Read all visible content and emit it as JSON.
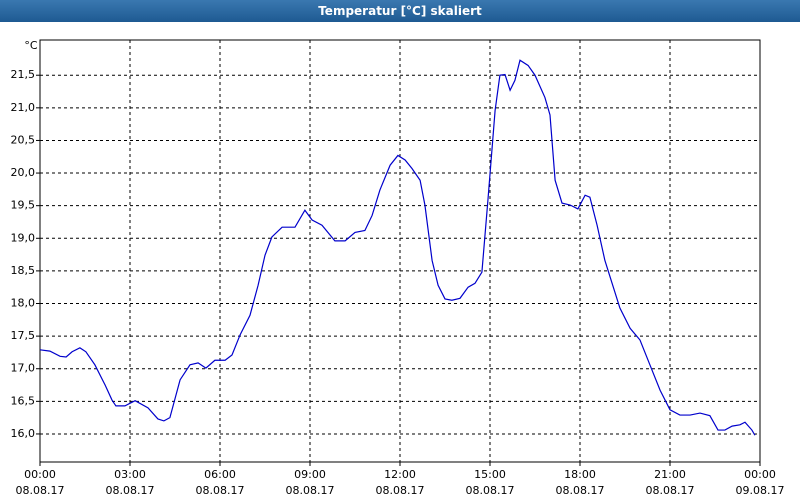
{
  "chart_data": {
    "type": "line",
    "title": "Temperatur [°C] skaliert",
    "y_unit": "°C",
    "x": [
      0,
      0.33,
      0.67,
      0.87,
      1.07,
      1.33,
      1.53,
      1.83,
      2.17,
      2.4,
      2.53,
      2.83,
      3.17,
      3.6,
      3.93,
      4.13,
      4.33,
      4.67,
      5,
      5.27,
      5.53,
      5.83,
      6.17,
      6.4,
      6.67,
      7,
      7.27,
      7.5,
      7.73,
      8.07,
      8.5,
      8.83,
      9.07,
      9.4,
      9.83,
      10.17,
      10.5,
      10.83,
      11.07,
      11.33,
      11.67,
      11.93,
      12.17,
      12.4,
      12.67,
      12.83,
      13.07,
      13.27,
      13.5,
      13.73,
      14,
      14.27,
      14.5,
      14.73,
      14.93,
      15.17,
      15.33,
      15.5,
      15.67,
      15.83,
      16,
      16.27,
      16.5,
      16.83,
      17,
      17.17,
      17.4,
      17.67,
      17.93,
      18.17,
      18.33,
      18.57,
      18.83,
      19.07,
      19.33,
      19.67,
      20,
      20.33,
      20.67,
      21,
      21.33,
      21.67,
      22,
      22.33,
      22.6,
      22.83,
      23.07,
      23.33,
      23.5,
      23.73,
      23.83
    ],
    "series": [
      {
        "name": "Temperatur",
        "color": "#0000cc",
        "values": [
          17.29,
          17.27,
          17.19,
          17.18,
          17.26,
          17.32,
          17.26,
          17.06,
          16.75,
          16.52,
          16.43,
          16.43,
          16.51,
          16.4,
          16.23,
          16.2,
          16.25,
          16.83,
          17.06,
          17.09,
          17.01,
          17.13,
          17.13,
          17.21,
          17.52,
          17.82,
          18.28,
          18.74,
          19.02,
          19.17,
          19.17,
          19.43,
          19.28,
          19.2,
          18.96,
          18.96,
          19.09,
          19.12,
          19.35,
          19.74,
          20.12,
          20.27,
          20.2,
          20.07,
          19.89,
          19.51,
          18.66,
          18.28,
          18.07,
          18.05,
          18.08,
          18.25,
          18.31,
          18.48,
          19.58,
          20.96,
          21.5,
          21.51,
          21.27,
          21.42,
          21.73,
          21.65,
          21.5,
          21.16,
          20.89,
          19.89,
          19.54,
          19.51,
          19.45,
          19.66,
          19.63,
          19.2,
          18.66,
          18.31,
          17.93,
          17.62,
          17.44,
          17.06,
          16.67,
          16.37,
          16.29,
          16.29,
          16.32,
          16.28,
          16.06,
          16.06,
          16.12,
          16.14,
          16.18,
          16.06,
          15.98
        ]
      }
    ],
    "xlim": [
      0,
      24
    ],
    "xticks": [
      {
        "value": 0,
        "label": "00:00\n08.08.17"
      },
      {
        "value": 3,
        "label": "03:00\n08.08.17"
      },
      {
        "value": 6,
        "label": "06:00\n08.08.17"
      },
      {
        "value": 9,
        "label": "09:00\n08.08.17"
      },
      {
        "value": 12,
        "label": "12:00\n08.08.17"
      },
      {
        "value": 15,
        "label": "15:00\n08.08.17"
      },
      {
        "value": 18,
        "label": "18:00\n08.08.17"
      },
      {
        "value": 21,
        "label": "21:00\n08.08.17"
      },
      {
        "value": 24,
        "label": "00:00\n09.08.17"
      }
    ],
    "ylim": [
      15.57,
      22.04
    ],
    "yticks": [
      {
        "value": 16,
        "label": "16,0"
      },
      {
        "value": 16.5,
        "label": "16,5"
      },
      {
        "value": 17,
        "label": "17,0"
      },
      {
        "value": 17.5,
        "label": "17,5"
      },
      {
        "value": 18,
        "label": "18,0"
      },
      {
        "value": 18.5,
        "label": "18,5"
      },
      {
        "value": 19,
        "label": "19,0"
      },
      {
        "value": 19.5,
        "label": "19,5"
      },
      {
        "value": 20,
        "label": "20,0"
      },
      {
        "value": 20.5,
        "label": "20,5"
      },
      {
        "value": 21,
        "label": "21,0"
      },
      {
        "value": 21.5,
        "label": "21,5"
      }
    ],
    "grid": true
  }
}
